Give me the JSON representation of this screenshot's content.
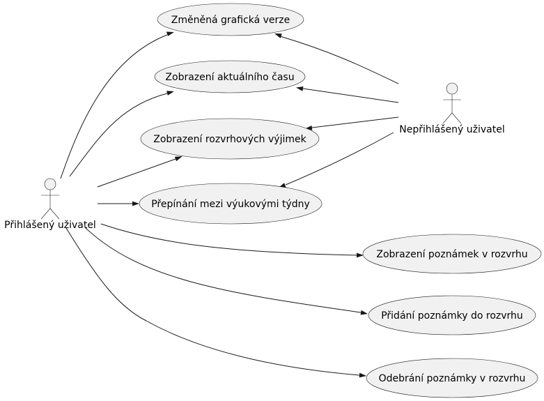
{
  "actors": [
    {
      "id": "logged",
      "label": "Přihlášený uživatel"
    },
    {
      "id": "anon",
      "label": "Nepřihlášený uživatel"
    }
  ],
  "use_cases": [
    {
      "id": "uc1",
      "label": "Změněná grafická verze"
    },
    {
      "id": "uc2",
      "label": "Zobrazení aktuálního času"
    },
    {
      "id": "uc3",
      "label": "Zobrazení rozvrhových výjimek"
    },
    {
      "id": "uc4",
      "label": "Přepínání mezi výukovými týdny"
    },
    {
      "id": "uc5",
      "label": "Zobrazení poznámek v rozvrhu"
    },
    {
      "id": "uc6",
      "label": "Přidání poznámky do rozvrhu"
    },
    {
      "id": "uc7",
      "label": "Odebrání poznámky v rozvrhu"
    }
  ],
  "associations": [
    {
      "from": "logged",
      "to": "uc1"
    },
    {
      "from": "logged",
      "to": "uc2"
    },
    {
      "from": "logged",
      "to": "uc3"
    },
    {
      "from": "logged",
      "to": "uc4"
    },
    {
      "from": "logged",
      "to": "uc5"
    },
    {
      "from": "logged",
      "to": "uc6"
    },
    {
      "from": "logged",
      "to": "uc7"
    },
    {
      "from": "anon",
      "to": "uc1"
    },
    {
      "from": "anon",
      "to": "uc2"
    },
    {
      "from": "anon",
      "to": "uc3"
    },
    {
      "from": "anon",
      "to": "uc4"
    }
  ]
}
